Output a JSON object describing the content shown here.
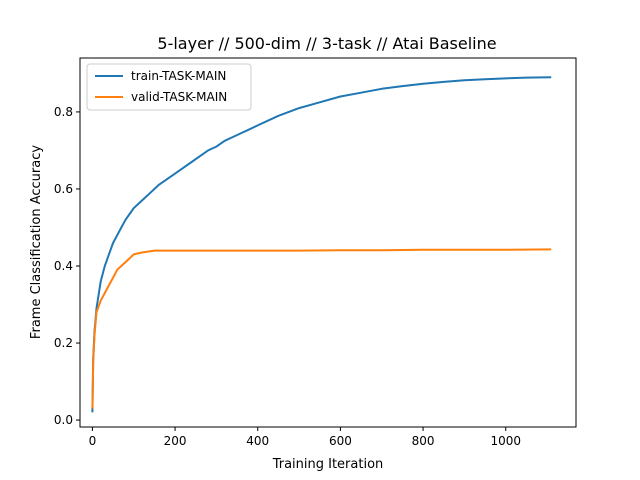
{
  "chart_data": {
    "type": "line",
    "title": "5-layer // 500-dim // 3-task // Atai Baseline",
    "xlabel": "Training Iteration",
    "ylabel": "Frame Classification Accuracy",
    "xlim": [
      -30,
      1170
    ],
    "ylim": [
      -0.018,
      0.94
    ],
    "xticks": [
      0,
      200,
      400,
      600,
      800,
      1000
    ],
    "xtick_labels": [
      "0",
      "200",
      "400",
      "600",
      "800",
      "1000"
    ],
    "yticks": [
      0.0,
      0.2,
      0.4,
      0.6,
      0.8
    ],
    "ytick_labels": [
      "0.0",
      "0.2",
      "0.4",
      "0.6",
      "0.8"
    ],
    "grid": false,
    "legend": "top-left",
    "series": [
      {
        "name": "train-TASK-MAIN",
        "color": "#1f77b4",
        "x": [
          0,
          2,
          5,
          10,
          20,
          30,
          40,
          50,
          60,
          70,
          80,
          90,
          100,
          120,
          140,
          160,
          180,
          200,
          220,
          240,
          260,
          280,
          300,
          320,
          340,
          360,
          380,
          400,
          450,
          500,
          550,
          600,
          650,
          700,
          750,
          800,
          850,
          900,
          950,
          1000,
          1050,
          1110
        ],
        "y": [
          0.02,
          0.16,
          0.23,
          0.29,
          0.36,
          0.4,
          0.43,
          0.46,
          0.48,
          0.5,
          0.52,
          0.535,
          0.55,
          0.57,
          0.59,
          0.61,
          0.625,
          0.64,
          0.655,
          0.67,
          0.685,
          0.7,
          0.71,
          0.725,
          0.735,
          0.745,
          0.755,
          0.765,
          0.79,
          0.81,
          0.825,
          0.84,
          0.85,
          0.86,
          0.867,
          0.873,
          0.878,
          0.882,
          0.885,
          0.887,
          0.889,
          0.89
        ]
      },
      {
        "name": "valid-TASK-MAIN",
        "color": "#ff7f0e",
        "x": [
          0,
          2,
          5,
          10,
          20,
          30,
          40,
          50,
          60,
          70,
          80,
          90,
          100,
          120,
          150,
          200,
          250,
          300,
          400,
          500,
          600,
          700,
          800,
          900,
          1000,
          1110
        ],
        "y": [
          0.03,
          0.15,
          0.22,
          0.28,
          0.31,
          0.33,
          0.35,
          0.37,
          0.39,
          0.4,
          0.41,
          0.42,
          0.43,
          0.435,
          0.44,
          0.44,
          0.44,
          0.44,
          0.44,
          0.44,
          0.441,
          0.441,
          0.442,
          0.442,
          0.442,
          0.443
        ]
      }
    ]
  }
}
